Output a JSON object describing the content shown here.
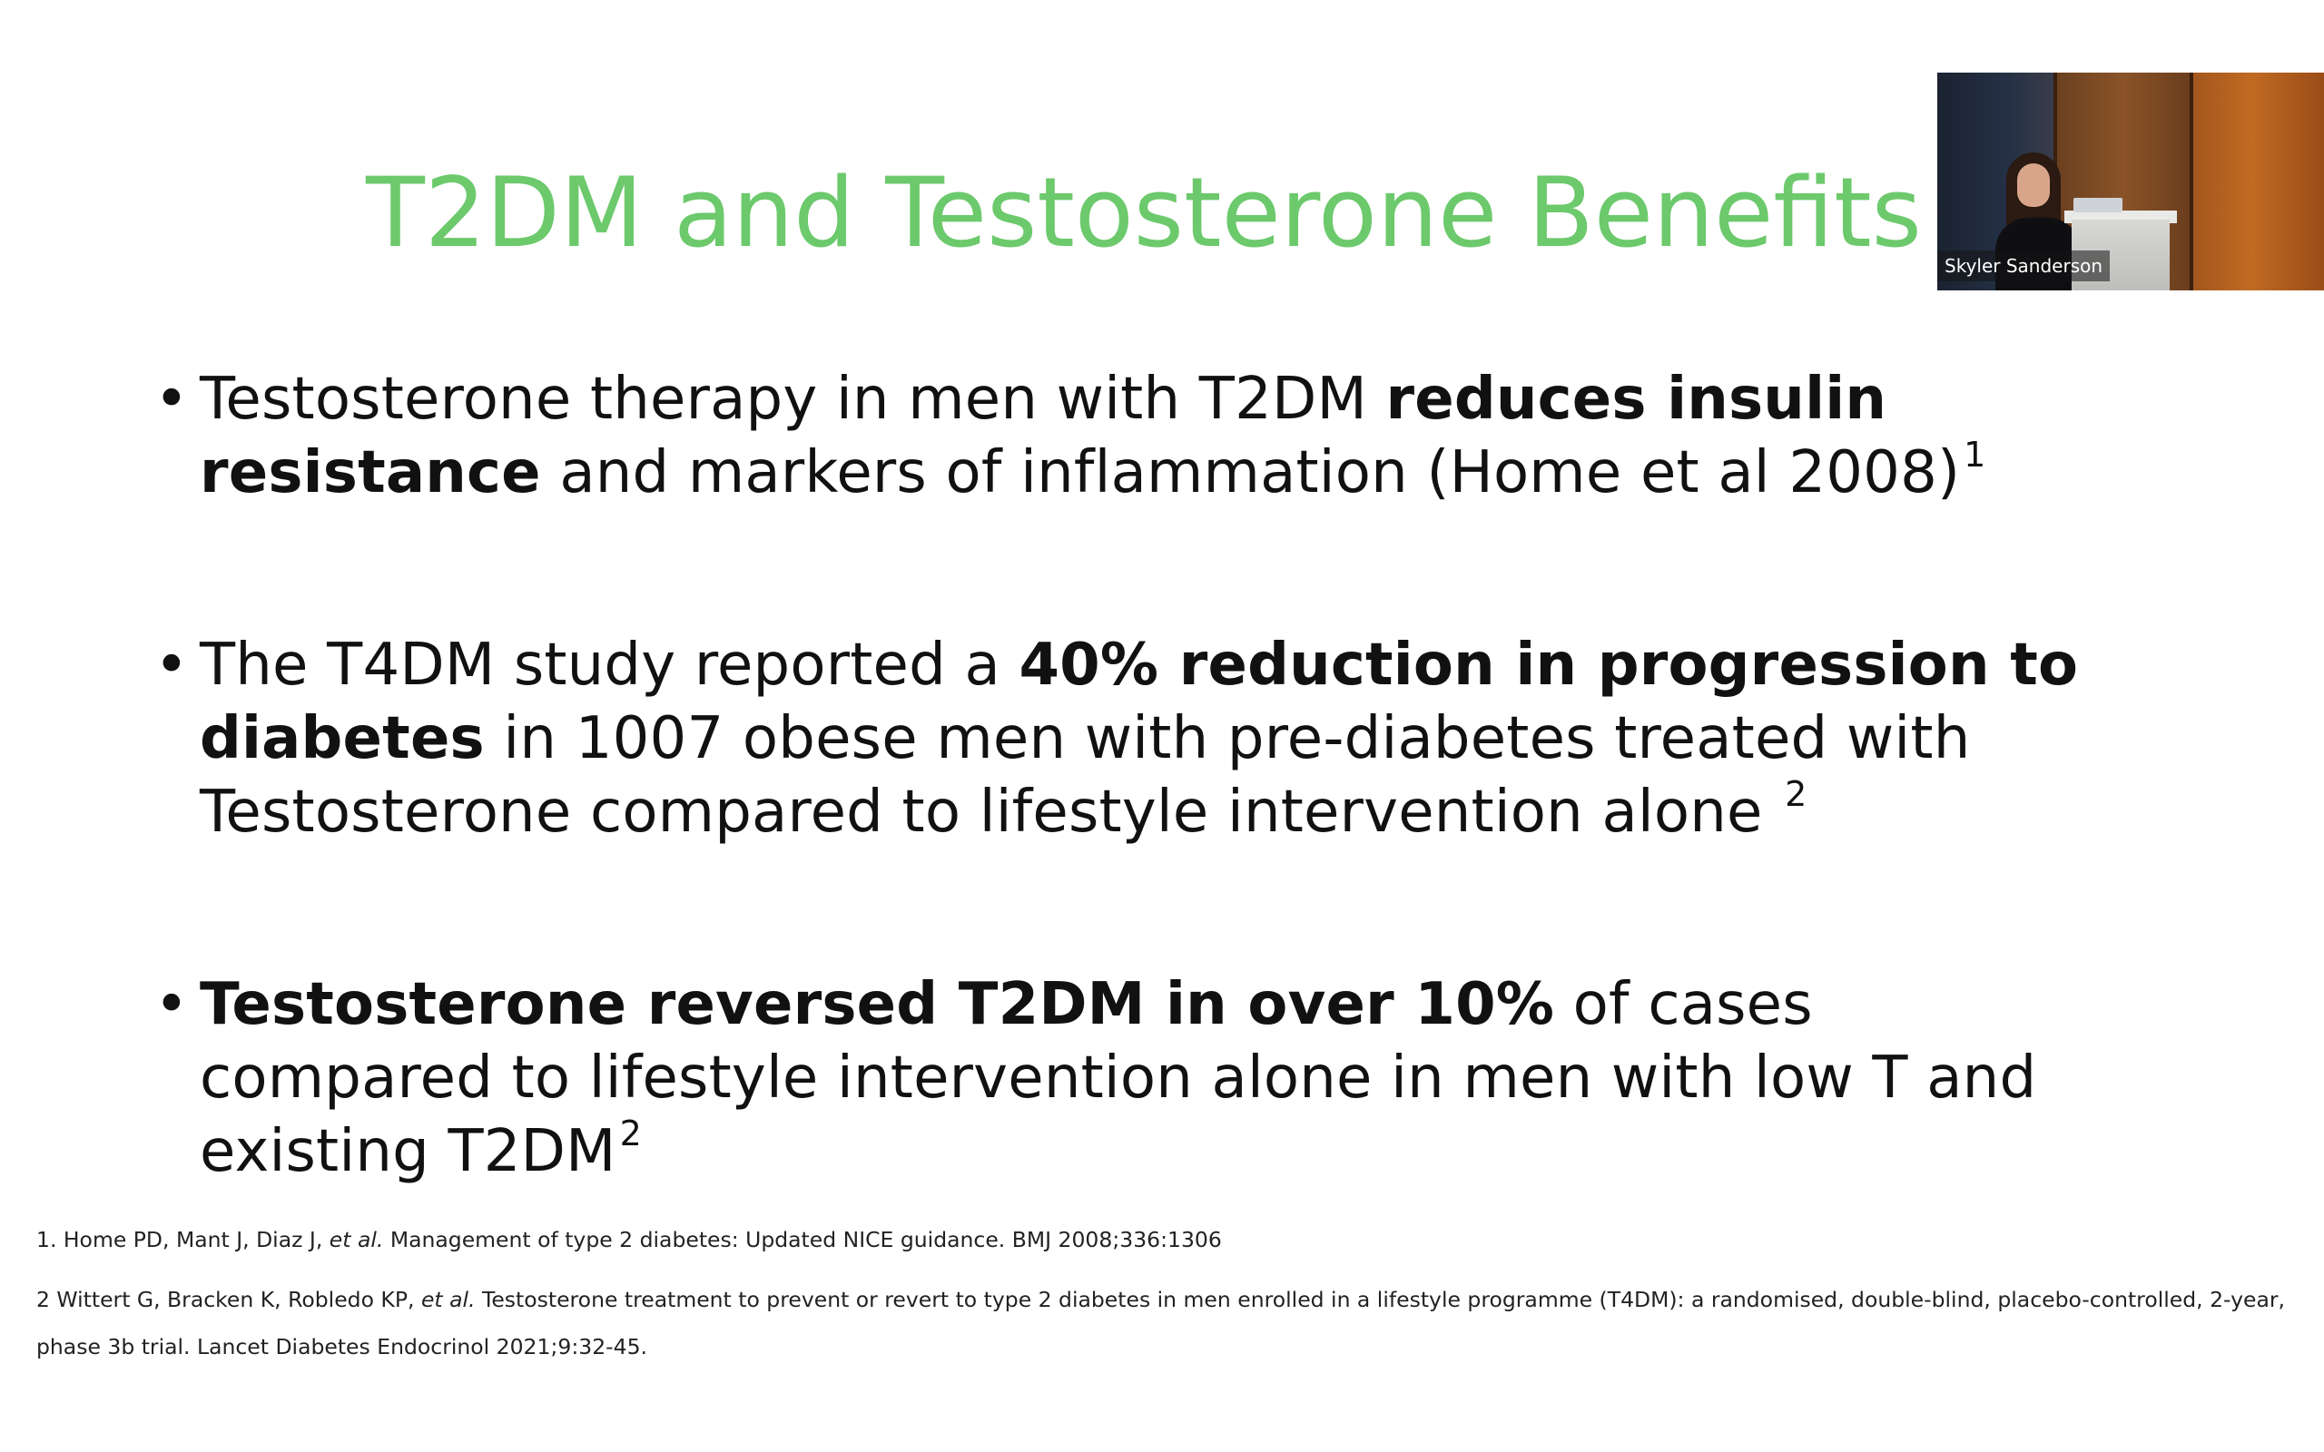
{
  "slide": {
    "title": "T2DM and Testosterone Benefits",
    "bullets": [
      {
        "parts": {
          "a": "Testosterone therapy in men with T2DM ",
          "b": "reduces insulin resistance",
          "c": " and markers of inflammation (Home et al 2008)",
          "sup": "1"
        }
      },
      {
        "parts": {
          "a": "The T4DM study  reported a ",
          "b": "40% reduction in progression to diabetes",
          "c": " in 1007 obese men with pre-diabetes treated with Testosterone compared to lifestyle intervention alone ",
          "sup": "2"
        }
      },
      {
        "parts": {
          "b": "Testosterone reversed T2DM in over 10%",
          "c": " of cases compared to lifestyle intervention alone in men with low T and existing T2DM",
          "sup": "2"
        }
      }
    ],
    "bullet_glyph": "•",
    "references": {
      "ref1": {
        "pre": "1. Home PD, Mant J, Diaz J, ",
        "etal": "et al.",
        "post": " Management of type 2 diabetes: Updated NICE guidance. BMJ 2008;336:1306"
      },
      "ref2": {
        "pre": "2 Wittert G, Bracken K, Robledo KP, ",
        "etal": "et al.",
        "post": " Testosterone treatment to prevent or revert to type 2 diabetes in men enrolled in a lifestyle programme (T4DM): a randomised, double-blind, placebo-controlled, 2-year, phase 3b trial. Lancet Diabetes Endocrinol 2021;9:32-45."
      }
    }
  },
  "video_overlay": {
    "speaker_name": "Skyler Sanderson"
  },
  "colors": {
    "title": "#6cc96c",
    "text": "#111111",
    "background": "#ffffff"
  }
}
